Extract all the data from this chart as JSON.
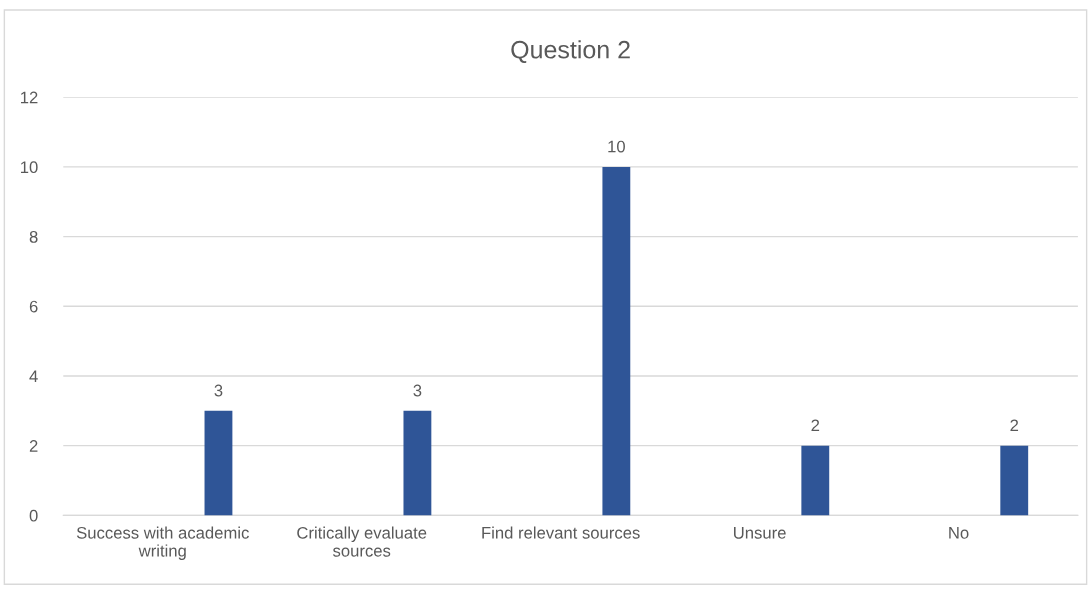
{
  "chart_data": {
    "type": "bar",
    "title": "Question 2",
    "categories": [
      "Success with academic writing",
      "Critically evaluate sources",
      "Find relevant sources",
      "Unsure",
      "No"
    ],
    "values": [
      3,
      3,
      10,
      2,
      2
    ],
    "color": "#2f5597",
    "ylim": [
      0,
      12
    ],
    "yticks": [
      0,
      2,
      4,
      6,
      8,
      10,
      12
    ],
    "grid": "y",
    "data_labels": true,
    "legend": false
  }
}
